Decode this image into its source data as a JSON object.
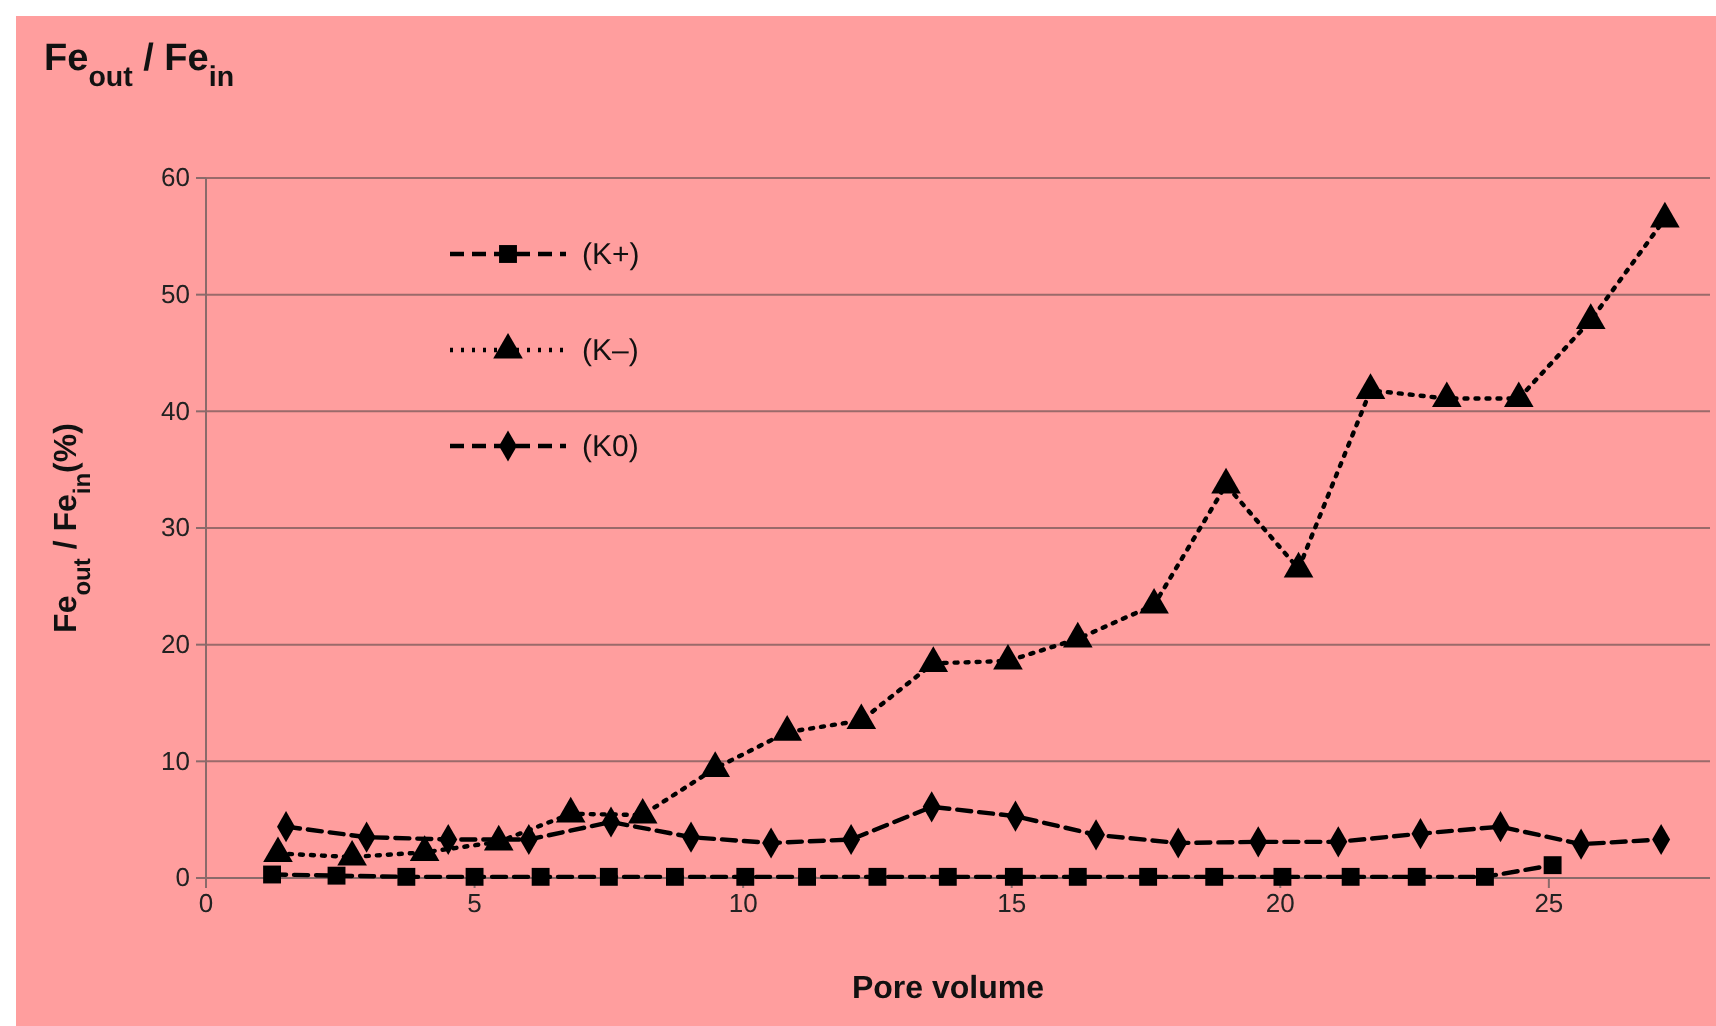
{
  "chart_data": {
    "type": "line",
    "title": "Fe$_{out}$ / Fe$_{in}$",
    "xlabel": "Pore volume",
    "ylabel": "Fe$_{out}$ / Fe$_{in}$(%)",
    "xlim": [
      0,
      28
    ],
    "xticks": [
      0,
      5,
      10,
      15,
      20,
      25
    ],
    "ylim": [
      0,
      60
    ],
    "yticks": [
      0,
      10,
      20,
      30,
      40,
      50,
      60
    ],
    "grid": "y",
    "legend": "top left",
    "series": [
      {
        "name": "(K+)",
        "color": "#000000",
        "marker": "square",
        "line_style": "dashed",
        "x": [
          1.23,
          2.43,
          3.73,
          5.0,
          6.23,
          7.5,
          8.73,
          10.04,
          11.19,
          12.5,
          13.81,
          15.04,
          16.23,
          17.54,
          18.77,
          20.04,
          21.31,
          22.54,
          23.81,
          25.07
        ],
        "values": [
          0.3,
          0.2,
          0.1,
          0.1,
          0.1,
          0.1,
          0.1,
          0.1,
          0.1,
          0.1,
          0.1,
          0.1,
          0.1,
          0.1,
          0.1,
          0.1,
          0.1,
          0.1,
          0.1,
          1.1
        ]
      },
      {
        "name": "(K–)",
        "color": "#000000",
        "marker": "triangle",
        "line_style": "dotted",
        "x": [
          1.34,
          2.72,
          4.07,
          5.45,
          6.79,
          8.13,
          9.48,
          10.82,
          12.2,
          13.54,
          14.93,
          16.23,
          17.65,
          18.99,
          20.34,
          21.68,
          23.1,
          24.44,
          25.78,
          27.16
        ],
        "values": [
          2.1,
          1.8,
          2.2,
          3.1,
          5.5,
          5.4,
          9.4,
          12.5,
          13.5,
          18.4,
          18.6,
          20.5,
          23.4,
          33.7,
          26.5,
          41.8,
          41.1,
          41.1,
          47.8,
          56.5
        ]
      },
      {
        "name": "(K0)",
        "color": "#000000",
        "marker": "diamond",
        "line_style": "dashed",
        "x": [
          1.49,
          2.99,
          4.51,
          6.01,
          7.54,
          9.03,
          10.52,
          12.01,
          13.51,
          15.07,
          16.57,
          18.1,
          19.59,
          21.08,
          22.61,
          24.1,
          25.6,
          27.09
        ],
        "values": [
          4.4,
          3.5,
          3.3,
          3.3,
          4.8,
          3.5,
          3.0,
          3.3,
          6.1,
          5.3,
          3.7,
          3.0,
          3.1,
          3.1,
          3.8,
          4.4,
          2.9,
          3.3
        ]
      }
    ]
  }
}
